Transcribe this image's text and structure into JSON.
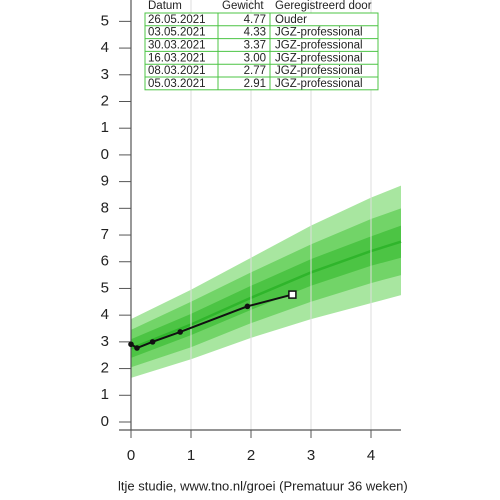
{
  "chart_data": {
    "type": "line",
    "xlim": [
      -0.2,
      4.5
    ],
    "ylim": [
      -0.3,
      15.8
    ],
    "xticks": [
      0,
      1,
      2,
      3,
      4
    ],
    "yticks": [
      0,
      1,
      2,
      3,
      4,
      5,
      6,
      7,
      8,
      9,
      {
        "value": 10,
        "label": "0"
      },
      {
        "value": 11,
        "label": "1"
      },
      {
        "value": 12,
        "label": "2"
      },
      {
        "value": 13,
        "label": "3"
      },
      {
        "value": 14,
        "label": "4"
      },
      {
        "value": 15,
        "label": "5"
      }
    ],
    "grid": true,
    "band_x": [
      0,
      1,
      2,
      3,
      4,
      4.5
    ],
    "bands": [
      {
        "color": "#a8e6a0",
        "upper": [
          3.85,
          4.95,
          6.15,
          7.35,
          8.4,
          8.85
        ],
        "lower": [
          1.65,
          2.35,
          3.15,
          3.85,
          4.45,
          4.75
        ]
      },
      {
        "color": "#72d468",
        "upper": [
          3.45,
          4.5,
          5.6,
          6.65,
          7.6,
          8.0
        ],
        "lower": [
          2.05,
          2.8,
          3.7,
          4.5,
          5.2,
          5.5
        ]
      },
      {
        "color": "#4cc444",
        "upper": [
          3.1,
          4.05,
          5.1,
          6.1,
          6.95,
          7.35
        ],
        "lower": [
          2.4,
          3.25,
          4.2,
          5.1,
          5.85,
          6.15
        ]
      }
    ],
    "median": {
      "color": "#2fb52b",
      "values": [
        2.75,
        3.65,
        4.65,
        5.6,
        6.4,
        6.75
      ]
    },
    "series": [
      {
        "color": "#111111",
        "x": [
          0,
          0.1,
          0.36,
          0.82,
          1.94,
          2.69
        ],
        "values": [
          2.91,
          2.77,
          3.0,
          3.37,
          4.33,
          4.77
        ]
      }
    ],
    "footer": "ltje studie, www.tno.nl/groei (Prematuur 36 weken)",
    "table": {
      "header": [
        "Datum",
        "Gewicht",
        "Geregistreerd door"
      ],
      "rows": [
        [
          "26.05.2021",
          "4.77",
          "Ouder"
        ],
        [
          "03.05.2021",
          "4.33",
          "JGZ-professional"
        ],
        [
          "30.03.2021",
          "3.37",
          "JGZ-professional"
        ],
        [
          "16.03.2021",
          "3.00",
          "JGZ-professional"
        ],
        [
          "08.03.2021",
          "2.77",
          "JGZ-professional"
        ],
        [
          "05.03.2021",
          "2.91",
          "JGZ-professional"
        ]
      ]
    }
  }
}
